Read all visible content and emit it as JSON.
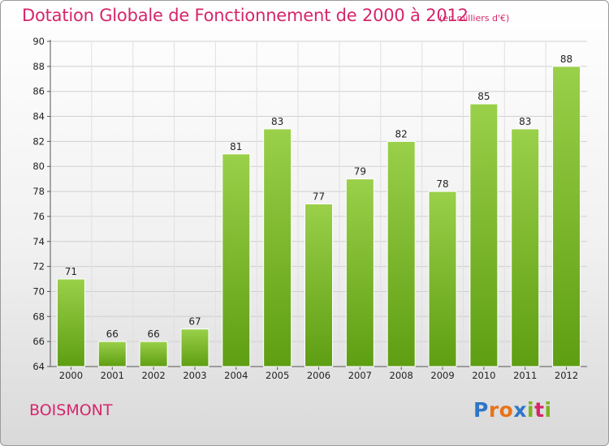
{
  "title": "Dotation Globale de Fonctionnement de 2000 à 2012",
  "subtitle": "(en milliers d'€)",
  "commune": "BOISMONT",
  "logo": {
    "letters": [
      "P",
      "r",
      "o",
      "x",
      "i",
      "t",
      "i"
    ],
    "colors": [
      "#2e75c7",
      "#e8731a",
      "#e8731a",
      "#2e75c7",
      "#7ab51d",
      "#d6256a",
      "#7ab51d"
    ]
  },
  "colors": {
    "bar_top": "#9ad04a",
    "bar_bottom": "#5e9e12",
    "accent": "#d6256a"
  },
  "chart_data": {
    "type": "bar",
    "title": "Dotation Globale de Fonctionnement de 2000 à 2012",
    "subtitle": "(en milliers d'€)",
    "categories": [
      "2000",
      "2001",
      "2002",
      "2003",
      "2004",
      "2005",
      "2006",
      "2007",
      "2008",
      "2009",
      "2010",
      "2011",
      "2012"
    ],
    "values": [
      71,
      66,
      66,
      67,
      81,
      83,
      77,
      79,
      82,
      78,
      85,
      83,
      88
    ],
    "ylim": [
      64,
      90
    ],
    "yticks": [
      64,
      66,
      68,
      70,
      72,
      74,
      76,
      78,
      80,
      82,
      84,
      86,
      88,
      90
    ],
    "grid": true,
    "xlabel": "",
    "ylabel": ""
  }
}
